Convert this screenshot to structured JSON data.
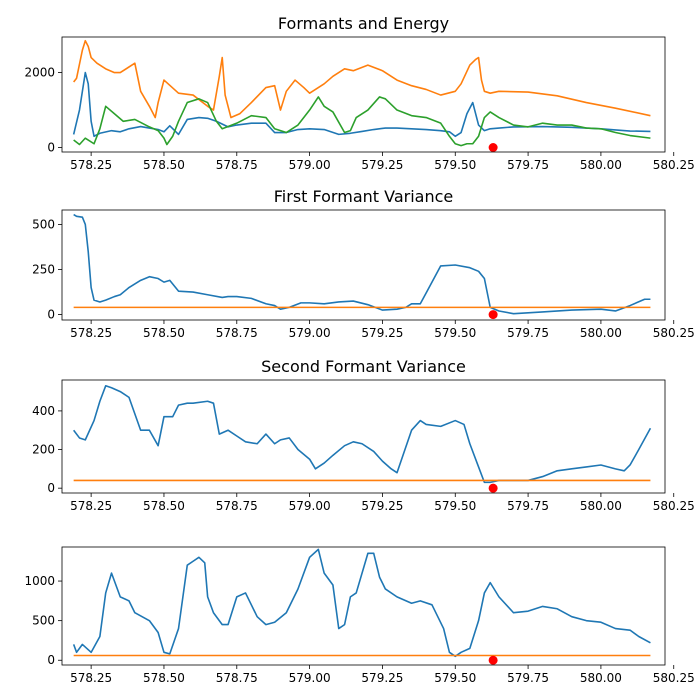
{
  "chart_data": [
    {
      "type": "line",
      "title": "Formants and Energy",
      "xlim": [
        578.15,
        580.22
      ],
      "ylim": [
        -120,
        2950
      ],
      "xticks": [
        578.25,
        578.5,
        578.75,
        579.0,
        579.25,
        579.5,
        579.75,
        580.0,
        580.25
      ],
      "xticklabels": [
        "578.25",
        "578.50",
        "578.75",
        "579.00",
        "579.25",
        "579.50",
        "579.75",
        "580.00",
        "580.25"
      ],
      "yticks": [
        0,
        2000
      ],
      "yticklabels": [
        "0",
        "2000"
      ],
      "series": [
        {
          "color": "#1f77b4",
          "x": [
            578.19,
            578.21,
            578.23,
            578.24,
            578.25,
            578.26,
            578.28,
            578.32,
            578.35,
            578.38,
            578.42,
            578.45,
            578.48,
            578.5,
            578.52,
            578.55,
            578.58,
            578.62,
            578.65,
            578.68,
            578.72,
            578.75,
            578.8,
            578.85,
            578.88,
            578.92,
            578.96,
            579.0,
            579.05,
            579.1,
            579.14,
            579.18,
            579.22,
            579.26,
            579.3,
            579.35,
            579.4,
            579.45,
            579.48,
            579.5,
            579.52,
            579.54,
            579.56,
            579.58,
            579.6,
            579.62,
            579.65,
            579.7,
            579.8,
            579.9,
            580.0,
            580.1,
            580.17
          ],
          "y": [
            350,
            1000,
            2000,
            1700,
            700,
            300,
            380,
            450,
            420,
            500,
            560,
            520,
            480,
            420,
            580,
            350,
            750,
            800,
            780,
            700,
            550,
            600,
            650,
            650,
            400,
            400,
            480,
            500,
            480,
            350,
            380,
            430,
            480,
            520,
            520,
            500,
            480,
            450,
            420,
            300,
            400,
            900,
            1200,
            600,
            450,
            500,
            520,
            550,
            560,
            540,
            500,
            440,
            430
          ]
        },
        {
          "color": "#ff7f0e",
          "x": [
            578.19,
            578.2,
            578.22,
            578.23,
            578.24,
            578.25,
            578.27,
            578.3,
            578.33,
            578.35,
            578.4,
            578.42,
            578.45,
            578.47,
            578.48,
            578.5,
            578.55,
            578.6,
            578.65,
            578.67,
            578.69,
            578.7,
            578.71,
            578.73,
            578.76,
            578.8,
            578.85,
            578.88,
            578.9,
            578.92,
            578.95,
            578.98,
            579.0,
            579.05,
            579.08,
            579.12,
            579.15,
            579.2,
            579.25,
            579.3,
            579.35,
            579.4,
            579.45,
            579.5,
            579.52,
            579.55,
            579.57,
            579.58,
            579.59,
            579.6,
            579.62,
            579.65,
            579.75,
            579.85,
            579.95,
            580.05,
            580.17
          ],
          "y": [
            1750,
            1850,
            2600,
            2850,
            2700,
            2400,
            2250,
            2100,
            2000,
            2000,
            2250,
            1500,
            1100,
            800,
            1200,
            1800,
            1450,
            1400,
            1100,
            1000,
            1900,
            2400,
            1400,
            800,
            900,
            1200,
            1600,
            1650,
            1000,
            1500,
            1800,
            1600,
            1450,
            1700,
            1900,
            2100,
            2050,
            2200,
            2050,
            1800,
            1650,
            1550,
            1400,
            1500,
            1700,
            2200,
            2350,
            2400,
            1800,
            1500,
            1450,
            1500,
            1480,
            1380,
            1200,
            1050,
            850
          ]
        },
        {
          "color": "#2ca02c",
          "x": [
            578.19,
            578.21,
            578.23,
            578.26,
            578.28,
            578.3,
            578.33,
            578.36,
            578.4,
            578.45,
            578.48,
            578.5,
            578.51,
            578.53,
            578.55,
            578.58,
            578.62,
            578.65,
            578.68,
            578.7,
            578.75,
            578.8,
            578.85,
            578.88,
            578.92,
            578.96,
            579.0,
            579.03,
            579.05,
            579.08,
            579.12,
            579.14,
            579.16,
            579.2,
            579.24,
            579.26,
            579.3,
            579.35,
            579.4,
            579.45,
            579.48,
            579.5,
            579.52,
            579.54,
            579.56,
            579.58,
            579.6,
            579.62,
            579.65,
            579.7,
            579.75,
            579.8,
            579.85,
            579.9,
            579.95,
            580.0,
            580.05,
            580.1,
            580.17
          ],
          "y": [
            200,
            80,
            250,
            100,
            500,
            1100,
            900,
            700,
            750,
            550,
            450,
            250,
            80,
            300,
            700,
            1200,
            1300,
            1200,
            700,
            500,
            650,
            850,
            800,
            500,
            400,
            600,
            1000,
            1350,
            1100,
            950,
            400,
            450,
            800,
            1000,
            1350,
            1300,
            1000,
            850,
            800,
            650,
            300,
            100,
            50,
            100,
            100,
            300,
            800,
            950,
            800,
            600,
            550,
            650,
            600,
            600,
            520,
            500,
            400,
            320,
            250
          ]
        },
        {
          "color": "#ff0000",
          "marker": "point",
          "x": [
            579.63
          ],
          "y": [
            0
          ]
        }
      ]
    },
    {
      "type": "line",
      "title": "First Formant Variance",
      "xlim": [
        578.15,
        580.22
      ],
      "ylim": [
        -30,
        580
      ],
      "xticks": [
        578.25,
        578.5,
        578.75,
        579.0,
        579.25,
        579.5,
        579.75,
        580.0,
        580.25
      ],
      "xticklabels": [
        "578.25",
        "578.50",
        "578.75",
        "579.00",
        "579.25",
        "579.50",
        "579.75",
        "580.00",
        "580.25"
      ],
      "yticks": [
        0,
        250,
        500
      ],
      "yticklabels": [
        "0",
        "250",
        "500"
      ],
      "series": [
        {
          "color": "#1f77b4",
          "x": [
            578.19,
            578.2,
            578.22,
            578.23,
            578.24,
            578.25,
            578.26,
            578.28,
            578.3,
            578.33,
            578.35,
            578.38,
            578.42,
            578.45,
            578.48,
            578.5,
            578.52,
            578.55,
            578.6,
            578.65,
            578.7,
            578.72,
            578.75,
            578.8,
            578.85,
            578.88,
            578.9,
            578.93,
            578.97,
            579.0,
            579.05,
            579.1,
            579.15,
            579.2,
            579.25,
            579.3,
            579.33,
            579.35,
            579.38,
            579.4,
            579.45,
            579.5,
            579.55,
            579.58,
            579.6,
            579.62,
            579.65,
            579.7,
            579.8,
            579.9,
            580.0,
            580.05,
            580.1,
            580.15,
            580.17
          ],
          "y": [
            555,
            545,
            540,
            500,
            350,
            150,
            80,
            70,
            80,
            100,
            110,
            150,
            190,
            210,
            200,
            180,
            190,
            130,
            125,
            110,
            95,
            100,
            100,
            90,
            60,
            50,
            30,
            40,
            65,
            65,
            60,
            70,
            75,
            55,
            25,
            30,
            40,
            60,
            60,
            120,
            270,
            275,
            260,
            240,
            200,
            40,
            20,
            5,
            15,
            25,
            30,
            20,
            50,
            85,
            85
          ]
        },
        {
          "color": "#ff7f0e",
          "x": [
            578.19,
            580.17
          ],
          "y": [
            40,
            40
          ]
        },
        {
          "color": "#ff0000",
          "marker": "point",
          "x": [
            579.63
          ],
          "y": [
            0
          ]
        }
      ]
    },
    {
      "type": "line",
      "title": "Second Formant Variance",
      "xlim": [
        578.15,
        580.22
      ],
      "ylim": [
        -25,
        560
      ],
      "xticks": [
        578.25,
        578.5,
        578.75,
        579.0,
        579.25,
        579.5,
        579.75,
        580.0,
        580.25
      ],
      "xticklabels": [
        "578.25",
        "578.50",
        "578.75",
        "579.00",
        "579.25",
        "579.50",
        "579.75",
        "580.00",
        "580.25"
      ],
      "yticks": [
        0,
        200,
        400
      ],
      "yticklabels": [
        "0",
        "200",
        "400"
      ],
      "series": [
        {
          "color": "#1f77b4",
          "x": [
            578.19,
            578.21,
            578.23,
            578.26,
            578.28,
            578.3,
            578.32,
            578.35,
            578.38,
            578.42,
            578.45,
            578.48,
            578.5,
            578.53,
            578.55,
            578.58,
            578.6,
            578.65,
            578.67,
            578.69,
            578.72,
            578.75,
            578.78,
            578.82,
            578.85,
            578.88,
            578.9,
            578.93,
            578.96,
            579.0,
            579.02,
            579.05,
            579.08,
            579.12,
            579.15,
            579.18,
            579.22,
            579.25,
            579.28,
            579.3,
            579.35,
            579.38,
            579.4,
            579.45,
            579.5,
            579.53,
            579.55,
            579.58,
            579.6,
            579.62,
            579.65,
            579.7,
            579.75,
            579.8,
            579.85,
            579.9,
            579.95,
            580.0,
            580.05,
            580.08,
            580.1,
            580.13,
            580.17
          ],
          "y": [
            300,
            260,
            250,
            350,
            450,
            530,
            520,
            500,
            470,
            300,
            300,
            220,
            370,
            370,
            430,
            440,
            440,
            450,
            440,
            280,
            300,
            270,
            240,
            230,
            280,
            230,
            250,
            260,
            200,
            150,
            100,
            130,
            170,
            220,
            240,
            230,
            190,
            140,
            100,
            80,
            300,
            350,
            330,
            320,
            350,
            330,
            230,
            110,
            30,
            30,
            40,
            40,
            40,
            60,
            90,
            100,
            110,
            120,
            100,
            90,
            120,
            200,
            310
          ]
        },
        {
          "color": "#ff7f0e",
          "x": [
            578.19,
            580.17
          ],
          "y": [
            40,
            40
          ]
        },
        {
          "color": "#ff0000",
          "marker": "point",
          "x": [
            579.63
          ],
          "y": [
            0
          ]
        }
      ]
    },
    {
      "type": "line",
      "title": "",
      "xlim": [
        578.15,
        580.22
      ],
      "ylim": [
        -60,
        1430
      ],
      "xticks": [
        578.25,
        578.5,
        578.75,
        579.0,
        579.25,
        579.5,
        579.75,
        580.0,
        580.25
      ],
      "xticklabels": [
        "578.25",
        "578.50",
        "578.75",
        "579.00",
        "579.25",
        "579.50",
        "579.75",
        "580.00",
        "580.25"
      ],
      "yticks": [
        0,
        500,
        1000
      ],
      "yticklabels": [
        "0",
        "500",
        "1000"
      ],
      "series": [
        {
          "color": "#1f77b4",
          "x": [
            578.19,
            578.2,
            578.22,
            578.25,
            578.28,
            578.3,
            578.32,
            578.35,
            578.38,
            578.4,
            578.45,
            578.48,
            578.5,
            578.52,
            578.55,
            578.58,
            578.6,
            578.62,
            578.64,
            578.65,
            578.67,
            578.7,
            578.72,
            578.75,
            578.78,
            578.82,
            578.85,
            578.88,
            578.92,
            578.96,
            579.0,
            579.03,
            579.05,
            579.08,
            579.1,
            579.12,
            579.14,
            579.16,
            579.2,
            579.22,
            579.24,
            579.26,
            579.3,
            579.35,
            579.38,
            579.42,
            579.46,
            579.48,
            579.5,
            579.52,
            579.55,
            579.58,
            579.6,
            579.62,
            579.65,
            579.7,
            579.75,
            579.8,
            579.85,
            579.9,
            579.95,
            580.0,
            580.05,
            580.1,
            580.13,
            580.17
          ],
          "y": [
            200,
            100,
            200,
            100,
            300,
            850,
            1100,
            800,
            750,
            600,
            500,
            350,
            100,
            80,
            400,
            1200,
            1250,
            1300,
            1230,
            800,
            600,
            450,
            450,
            800,
            850,
            550,
            450,
            480,
            600,
            900,
            1300,
            1400,
            1100,
            950,
            400,
            450,
            800,
            850,
            1350,
            1350,
            1050,
            900,
            800,
            720,
            750,
            700,
            400,
            100,
            50,
            100,
            150,
            500,
            850,
            980,
            800,
            600,
            620,
            680,
            650,
            550,
            500,
            480,
            400,
            380,
            300,
            220
          ]
        },
        {
          "color": "#ff7f0e",
          "x": [
            578.19,
            580.17
          ],
          "y": [
            60,
            60
          ]
        },
        {
          "color": "#ff0000",
          "marker": "point",
          "x": [
            579.63
          ],
          "y": [
            0
          ]
        }
      ]
    }
  ]
}
